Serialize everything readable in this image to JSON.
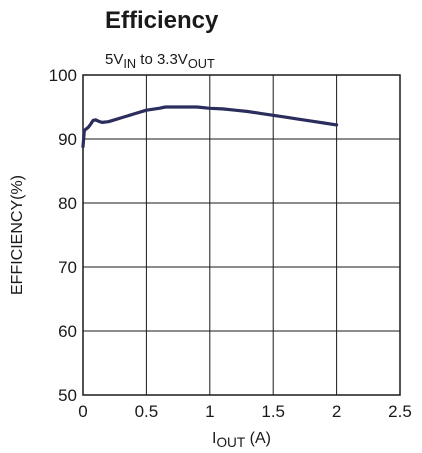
{
  "chart_data": {
    "type": "line",
    "title": "Efficiency",
    "subtitle": {
      "parts": [
        {
          "text": "5V",
          "sub": false
        },
        {
          "text": "IN",
          "sub": true
        },
        {
          "text": " to 3.3V",
          "sub": false
        },
        {
          "text": "OUT",
          "sub": true
        }
      ]
    },
    "xlabel": {
      "parts": [
        {
          "text": "I",
          "sub": false
        },
        {
          "text": "OUT",
          "sub": true
        },
        {
          "text": " (A)",
          "sub": false
        }
      ]
    },
    "ylabel": "EFFICIENCY(%)",
    "xlim": [
      0,
      2.5
    ],
    "ylim": [
      50,
      100
    ],
    "x_ticks": [
      0,
      0.5,
      1,
      1.5,
      2,
      2.5
    ],
    "x_tick_labels": [
      "0",
      "0.5",
      "1",
      "1.5",
      "2",
      "2.5"
    ],
    "y_ticks": [
      50,
      60,
      70,
      80,
      90,
      100
    ],
    "y_tick_labels": [
      "50",
      "60",
      "70",
      "80",
      "90",
      "100"
    ],
    "grid": true,
    "line_color": "#2b2d5c",
    "series": [
      {
        "x": [
          0,
          0.01,
          0.02,
          0.04,
          0.06,
          0.08,
          0.1,
          0.12,
          0.15,
          0.2,
          0.25,
          0.3,
          0.4,
          0.5,
          0.6,
          0.65,
          0.7,
          0.8,
          0.9,
          1.0,
          1.1,
          1.2,
          1.3,
          1.4,
          1.5,
          1.6,
          1.7,
          1.8,
          1.9,
          2.0
        ],
        "y": [
          88.8,
          91.3,
          91.5,
          91.8,
          92.3,
          92.9,
          93.0,
          92.8,
          92.6,
          92.7,
          93.0,
          93.3,
          93.9,
          94.5,
          94.8,
          95.0,
          95.0,
          95.0,
          95.0,
          94.8,
          94.7,
          94.5,
          94.3,
          94.0,
          93.7,
          93.4,
          93.1,
          92.8,
          92.5,
          92.2
        ]
      }
    ]
  }
}
